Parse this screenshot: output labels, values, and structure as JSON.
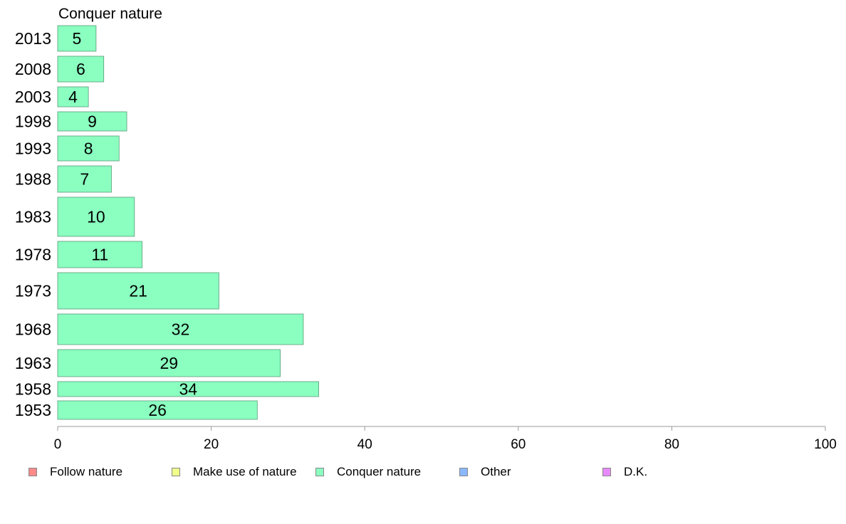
{
  "chart_data": {
    "type": "bar",
    "orientation": "horizontal",
    "title": "Conquer nature",
    "categories": [
      "2013",
      "2008",
      "2003",
      "1998",
      "1993",
      "1988",
      "1983",
      "1978",
      "1973",
      "1968",
      "1963",
      "1958",
      "1953"
    ],
    "series": [
      {
        "name": "Conquer nature",
        "color": "#8AFFC0",
        "values": [
          5,
          6,
          4,
          9,
          8,
          7,
          10,
          11,
          21,
          32,
          29,
          34,
          26
        ]
      }
    ],
    "xlim": [
      0,
      100
    ],
    "xticks": [
      0,
      20,
      40,
      60,
      80,
      100
    ],
    "grid": false,
    "legend_position": "bottom"
  },
  "legend": [
    {
      "label": "Follow nature",
      "color": "#FF8A8A"
    },
    {
      "label": "Make use of nature",
      "color": "#F0FF8A"
    },
    {
      "label": "Conquer nature",
      "color": "#8AFFC0"
    },
    {
      "label": "Other",
      "color": "#8AB8FF"
    },
    {
      "label": "D.K.",
      "color": "#E88AFF"
    }
  ]
}
